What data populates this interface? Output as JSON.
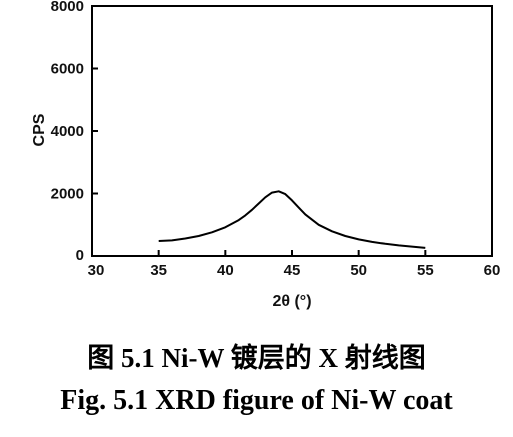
{
  "chart_data": {
    "type": "line",
    "title": "",
    "xlabel": "2θ (°)",
    "ylabel": "CPS",
    "xlim": [
      30,
      60
    ],
    "ylim": [
      0,
      8000
    ],
    "x_ticks": [
      30,
      35,
      40,
      45,
      50,
      55,
      60
    ],
    "y_ticks": [
      0,
      2000,
      4000,
      6000,
      8000
    ],
    "grid": false,
    "legend": "none",
    "series": [
      {
        "color": "#000000",
        "x": [
          35,
          36,
          37,
          38,
          39,
          40,
          41,
          41.5,
          42,
          42.5,
          43,
          43.5,
          44,
          44.5,
          45,
          45.5,
          46,
          47,
          48,
          49,
          50,
          51,
          52,
          53,
          54,
          55
        ],
        "y": [
          480,
          500,
          560,
          640,
          760,
          920,
          1150,
          1300,
          1480,
          1680,
          1880,
          2030,
          2070,
          1980,
          1780,
          1550,
          1330,
          1000,
          790,
          640,
          530,
          450,
          390,
          340,
          300,
          260
        ]
      }
    ]
  },
  "captions": {
    "chinese": "图 5.1 Ni-W 镀层的 X 射线图",
    "english": "Fig. 5.1 XRD figure of Ni-W coat"
  }
}
